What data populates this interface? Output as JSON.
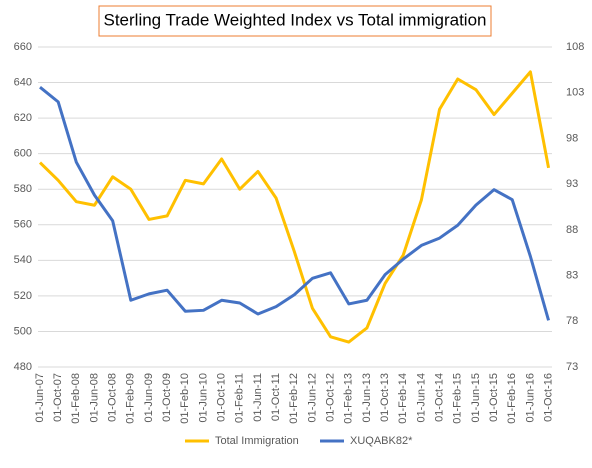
{
  "chart_data": {
    "type": "line",
    "title": "Sterling Trade Weighted Index vs Total immigration",
    "categories": [
      "01-Jun-07",
      "01-Oct-07",
      "01-Feb-08",
      "01-Jun-08",
      "01-Oct-08",
      "01-Feb-09",
      "01-Jun-09",
      "01-Oct-09",
      "01-Feb-10",
      "01-Jun-10",
      "01-Oct-10",
      "01-Feb-11",
      "01-Jun-11",
      "01-Oct-11",
      "01-Feb-12",
      "01-Jun-12",
      "01-Oct-12",
      "01-Feb-13",
      "01-Jun-13",
      "01-Oct-13",
      "01-Feb-14",
      "01-Jun-14",
      "01-Oct-14",
      "01-Feb-15",
      "01-Jun-15",
      "01-Oct-15",
      "01-Feb-16",
      "01-Jun-16",
      "01-Oct-16"
    ],
    "series": [
      {
        "name": "Total Immigration",
        "color": "#ffc000",
        "axis": "y",
        "values": [
          595,
          585,
          573,
          571,
          587,
          580,
          563,
          565,
          585,
          583,
          597,
          580,
          590,
          575,
          545,
          513,
          497,
          494,
          502,
          527,
          543,
          574,
          625,
          642,
          636,
          622,
          634,
          646,
          592
        ]
      },
      {
        "name": "XUQABK82*",
        "color": "#4472c4",
        "axis": "y2",
        "values": [
          103.6,
          102,
          95.4,
          91.8,
          89,
          80.3,
          81,
          81.4,
          79.1,
          79.2,
          80.3,
          80,
          78.8,
          79.6,
          80.9,
          82.7,
          83.3,
          79.9,
          80.3,
          83.1,
          84.8,
          86.3,
          87.1,
          88.5,
          90.7,
          92.4,
          91.3,
          85.1,
          78.1
        ]
      }
    ],
    "ylim": [
      480,
      660
    ],
    "yticks": [
      480,
      500,
      520,
      540,
      560,
      580,
      600,
      620,
      640,
      660
    ],
    "y2lim": [
      73,
      108
    ],
    "y2ticks": [
      73,
      78,
      83,
      88,
      93,
      98,
      103,
      108
    ],
    "grid": true,
    "legend": "bottom"
  }
}
